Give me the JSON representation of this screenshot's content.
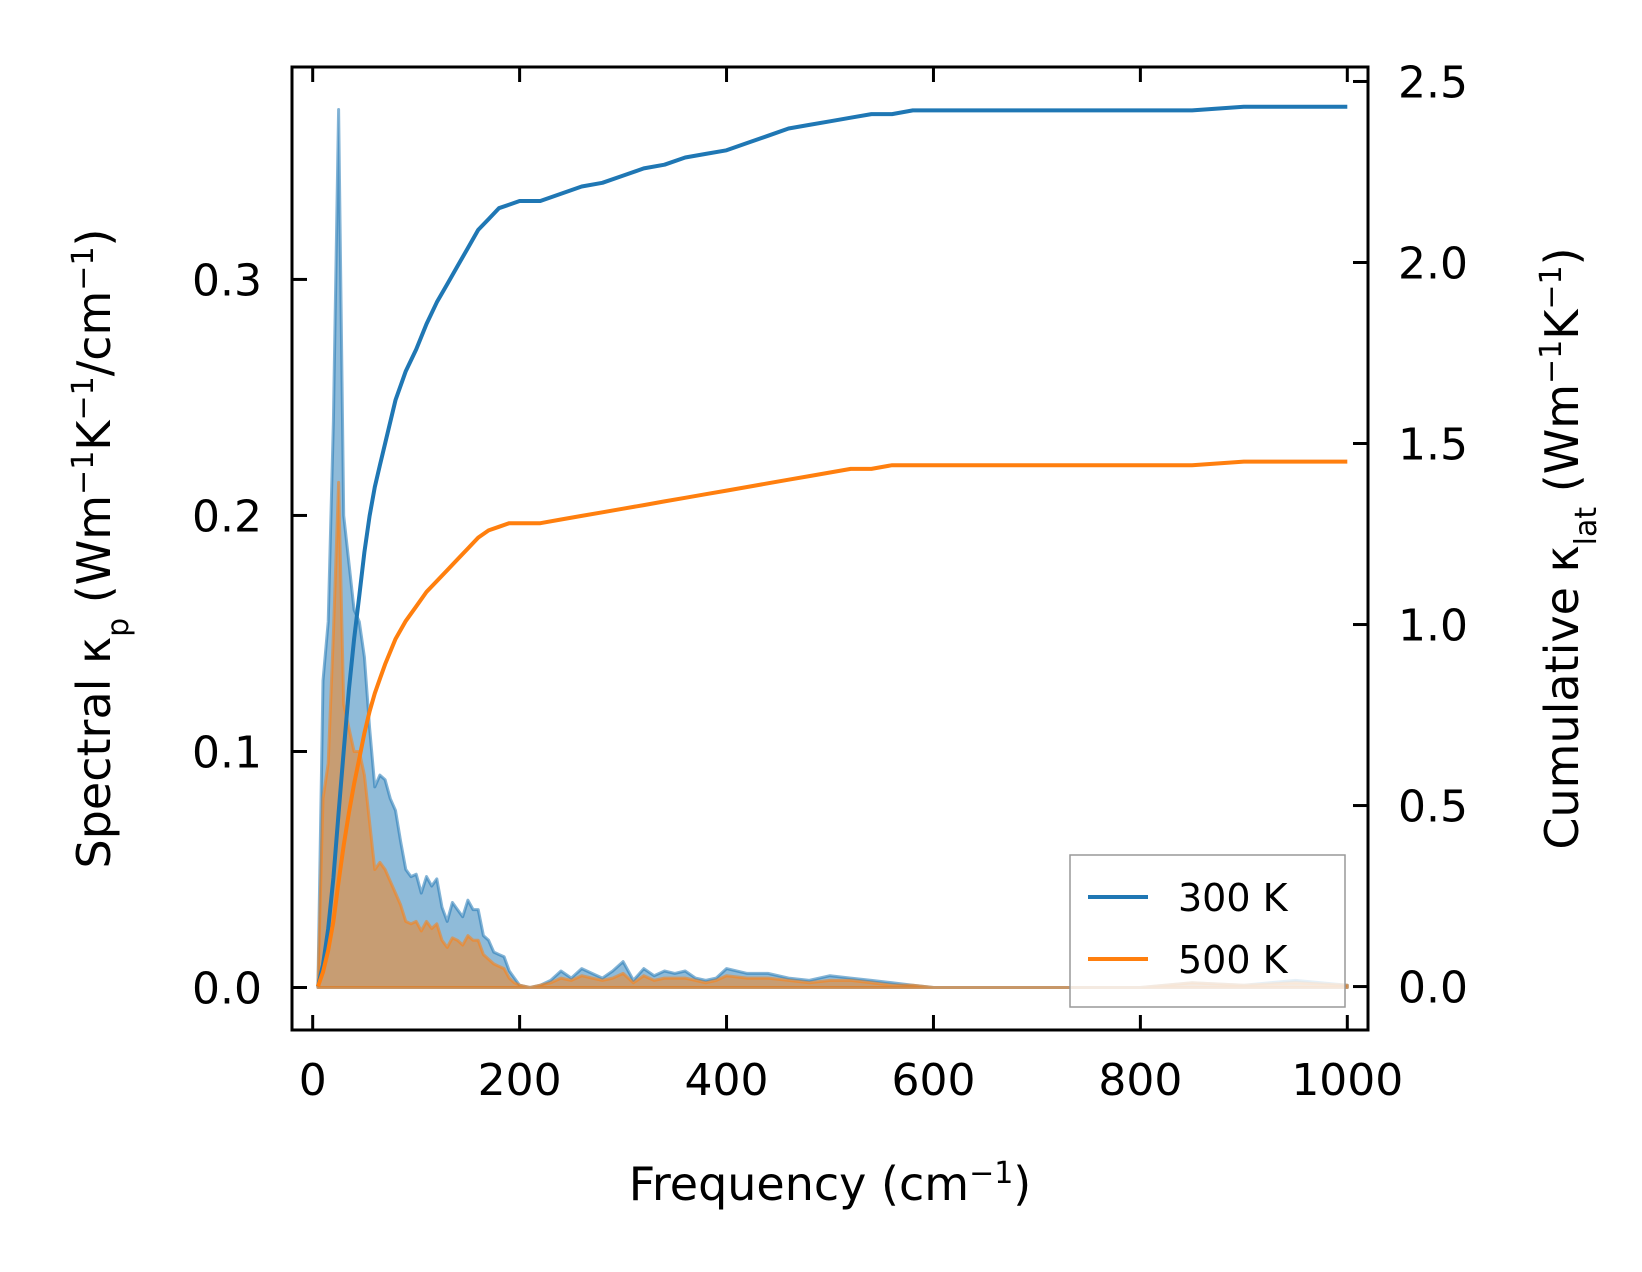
{
  "chart_data": {
    "type": "line",
    "xlabel": {
      "text": "Frequency (cm",
      "sup": "−1",
      "tail": ")"
    },
    "ylabel_left": {
      "parts": [
        {
          "t": "Spectral κ"
        },
        {
          "t": "p",
          "sub": true
        },
        {
          "t": " (Wm"
        },
        {
          "t": "−1",
          "sup": true
        },
        {
          "t": "K"
        },
        {
          "t": "−1",
          "sup": true
        },
        {
          "t": "/cm"
        },
        {
          "t": "−1",
          "sup": true
        },
        {
          "t": ")"
        }
      ]
    },
    "ylabel_right": {
      "parts": [
        {
          "t": "Cumulative κ"
        },
        {
          "t": "lat",
          "sub": true
        },
        {
          "t": " (Wm"
        },
        {
          "t": "−1",
          "sup": true
        },
        {
          "t": "K"
        },
        {
          "t": "−1",
          "sup": true
        },
        {
          "t": ")"
        }
      ]
    },
    "xlim": [
      -20,
      1020
    ],
    "ylim_left": [
      -0.018,
      0.39
    ],
    "ylim_right": [
      -0.12,
      2.54
    ],
    "xticks": [
      0,
      200,
      400,
      600,
      800,
      1000
    ],
    "xtick_labels": [
      "0",
      "200",
      "400",
      "600",
      "800",
      "1000"
    ],
    "yticks_left": [
      0.0,
      0.1,
      0.2,
      0.3
    ],
    "ytick_labels_left": [
      "0.0",
      "0.1",
      "0.2",
      "0.3"
    ],
    "yticks_right": [
      0.0,
      0.5,
      1.0,
      1.5,
      2.0,
      2.5
    ],
    "ytick_labels_right": [
      "0.0",
      "0.5",
      "1.0",
      "1.5",
      "2.0",
      "2.5"
    ],
    "legend_position": "lower-right",
    "series": [
      {
        "name": "300 K",
        "color": "#1f77b4",
        "spectral_x": [
          5,
          10,
          15,
          20,
          25,
          30,
          35,
          40,
          45,
          50,
          55,
          60,
          65,
          70,
          75,
          80,
          85,
          90,
          95,
          100,
          105,
          110,
          115,
          120,
          125,
          130,
          135,
          140,
          145,
          150,
          155,
          160,
          165,
          170,
          175,
          180,
          185,
          190,
          195,
          200,
          210,
          220,
          230,
          240,
          250,
          260,
          270,
          280,
          290,
          300,
          310,
          320,
          330,
          340,
          350,
          360,
          370,
          380,
          390,
          400,
          420,
          440,
          460,
          480,
          500,
          520,
          540,
          560,
          580,
          600,
          650,
          700,
          750,
          800,
          850,
          900,
          950,
          1000
        ],
        "spectral_y": [
          0.0,
          0.13,
          0.155,
          0.24,
          0.372,
          0.2,
          0.18,
          0.16,
          0.155,
          0.14,
          0.11,
          0.085,
          0.09,
          0.088,
          0.08,
          0.075,
          0.062,
          0.05,
          0.047,
          0.048,
          0.04,
          0.047,
          0.043,
          0.046,
          0.034,
          0.028,
          0.036,
          0.033,
          0.03,
          0.037,
          0.033,
          0.033,
          0.022,
          0.02,
          0.015,
          0.014,
          0.013,
          0.007,
          0.004,
          0.001,
          0.0,
          0.001,
          0.003,
          0.007,
          0.004,
          0.008,
          0.006,
          0.004,
          0.007,
          0.011,
          0.003,
          0.008,
          0.005,
          0.007,
          0.006,
          0.007,
          0.004,
          0.003,
          0.004,
          0.008,
          0.006,
          0.006,
          0.004,
          0.003,
          0.005,
          0.004,
          0.003,
          0.002,
          0.001,
          0.0,
          0.0,
          0.0,
          0.0,
          0.0,
          0.002,
          0.001,
          0.003,
          0.001
        ],
        "cumulative_x": [
          5,
          10,
          15,
          20,
          25,
          30,
          35,
          40,
          45,
          50,
          55,
          60,
          65,
          70,
          80,
          90,
          100,
          110,
          120,
          130,
          140,
          150,
          160,
          170,
          180,
          190,
          200,
          220,
          240,
          260,
          280,
          300,
          320,
          340,
          360,
          380,
          400,
          420,
          440,
          460,
          480,
          500,
          520,
          540,
          560,
          580,
          600,
          650,
          700,
          750,
          800,
          850,
          900,
          950,
          1000
        ],
        "cumulative_y": [
          0.0,
          0.06,
          0.16,
          0.3,
          0.48,
          0.65,
          0.82,
          0.96,
          1.08,
          1.2,
          1.3,
          1.38,
          1.44,
          1.5,
          1.62,
          1.7,
          1.76,
          1.83,
          1.89,
          1.94,
          1.99,
          2.04,
          2.09,
          2.12,
          2.15,
          2.16,
          2.17,
          2.17,
          2.19,
          2.21,
          2.22,
          2.24,
          2.26,
          2.27,
          2.29,
          2.3,
          2.31,
          2.33,
          2.35,
          2.37,
          2.38,
          2.39,
          2.4,
          2.41,
          2.41,
          2.42,
          2.42,
          2.42,
          2.42,
          2.42,
          2.42,
          2.42,
          2.43,
          2.43,
          2.43
        ]
      },
      {
        "name": "500 K",
        "color": "#ff7f0e",
        "spectral_x": [
          5,
          10,
          15,
          20,
          25,
          30,
          35,
          40,
          45,
          50,
          55,
          60,
          65,
          70,
          75,
          80,
          85,
          90,
          95,
          100,
          105,
          110,
          115,
          120,
          125,
          130,
          135,
          140,
          145,
          150,
          155,
          160,
          165,
          170,
          175,
          180,
          185,
          190,
          195,
          200,
          210,
          220,
          230,
          240,
          250,
          260,
          270,
          280,
          290,
          300,
          310,
          320,
          330,
          340,
          350,
          360,
          370,
          380,
          390,
          400,
          420,
          440,
          460,
          480,
          500,
          520,
          540,
          560,
          580,
          600,
          650,
          700,
          750,
          800,
          850,
          900,
          950,
          1000
        ],
        "spectral_y": [
          0.0,
          0.08,
          0.095,
          0.15,
          0.214,
          0.12,
          0.11,
          0.1,
          0.1,
          0.09,
          0.07,
          0.05,
          0.053,
          0.05,
          0.045,
          0.04,
          0.035,
          0.028,
          0.027,
          0.028,
          0.024,
          0.028,
          0.025,
          0.027,
          0.02,
          0.017,
          0.021,
          0.02,
          0.018,
          0.022,
          0.02,
          0.02,
          0.014,
          0.012,
          0.01,
          0.009,
          0.008,
          0.004,
          0.002,
          0.001,
          0.0,
          0.001,
          0.002,
          0.004,
          0.003,
          0.005,
          0.004,
          0.003,
          0.004,
          0.006,
          0.002,
          0.005,
          0.003,
          0.004,
          0.004,
          0.004,
          0.003,
          0.002,
          0.003,
          0.005,
          0.004,
          0.004,
          0.003,
          0.002,
          0.003,
          0.003,
          0.002,
          0.001,
          0.001,
          0.0,
          0.0,
          0.0,
          0.0,
          0.0,
          0.002,
          0.001,
          0.002,
          0.001
        ],
        "cumulative_x": [
          5,
          10,
          15,
          20,
          25,
          30,
          35,
          40,
          45,
          50,
          55,
          60,
          65,
          70,
          80,
          90,
          100,
          110,
          120,
          130,
          140,
          150,
          160,
          170,
          180,
          190,
          200,
          220,
          240,
          260,
          280,
          300,
          320,
          340,
          360,
          380,
          400,
          420,
          440,
          460,
          480,
          500,
          520,
          540,
          560,
          580,
          600,
          650,
          700,
          750,
          800,
          850,
          900,
          950,
          1000
        ],
        "cumulative_y": [
          0.0,
          0.04,
          0.1,
          0.18,
          0.29,
          0.39,
          0.48,
          0.56,
          0.63,
          0.7,
          0.76,
          0.81,
          0.85,
          0.89,
          0.96,
          1.01,
          1.05,
          1.09,
          1.12,
          1.15,
          1.18,
          1.21,
          1.24,
          1.26,
          1.27,
          1.28,
          1.28,
          1.28,
          1.29,
          1.3,
          1.31,
          1.32,
          1.33,
          1.34,
          1.35,
          1.36,
          1.37,
          1.38,
          1.39,
          1.4,
          1.41,
          1.42,
          1.43,
          1.43,
          1.44,
          1.44,
          1.44,
          1.44,
          1.44,
          1.44,
          1.44,
          1.44,
          1.45,
          1.45,
          1.45
        ]
      }
    ]
  }
}
